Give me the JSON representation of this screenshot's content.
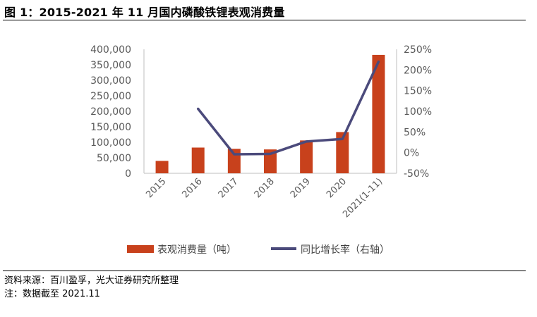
{
  "figure": {
    "title": "图 1：2015-2021 年 11 月国内磷酸铁锂表观消费量",
    "source": "资料来源：百川盈孚，光大证券研究所整理",
    "note": "注：数据截至 2021.11"
  },
  "chart_data": {
    "type": "bar",
    "categories": [
      "2015",
      "2016",
      "2017",
      "2018",
      "2019",
      "2020",
      "2021(1-11)"
    ],
    "series": [
      {
        "name": "表观消费量（吨）",
        "type": "bar",
        "axis": "left",
        "color": "#c8411c",
        "values": [
          40000,
          83000,
          79000,
          77000,
          106000,
          133000,
          382000
        ]
      },
      {
        "name": "同比增长率（右轴）",
        "type": "line",
        "axis": "right",
        "color": "#4b4a7b",
        "values": [
          null,
          1.06,
          -0.04,
          -0.03,
          0.27,
          0.33,
          2.2
        ]
      }
    ],
    "y_left": {
      "min": 0,
      "max": 400000,
      "ticks": [
        "0",
        "50,000",
        "100,000",
        "150,000",
        "200,000",
        "250,000",
        "300,000",
        "350,000",
        "400,000"
      ]
    },
    "y_right": {
      "min": -0.5,
      "max": 2.5,
      "ticks": [
        "-50%",
        "0%",
        "50%",
        "100%",
        "150%",
        "200%",
        "250%"
      ]
    },
    "grid": false,
    "legend_position": "bottom"
  }
}
